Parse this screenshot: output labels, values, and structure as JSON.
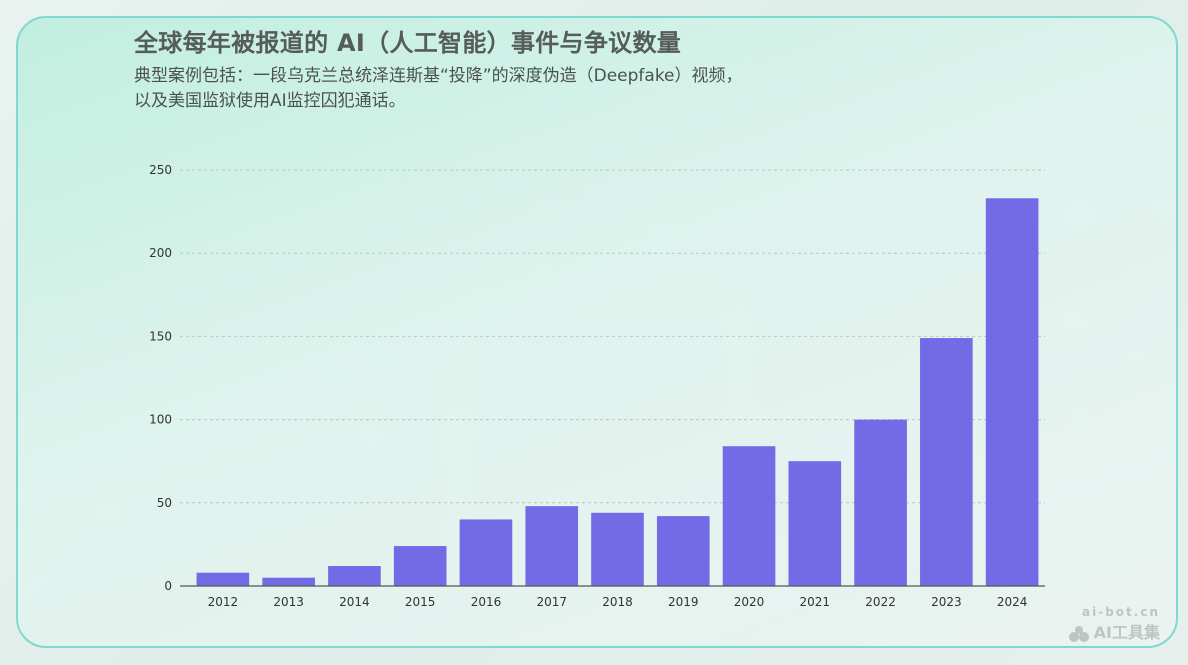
{
  "header": {
    "title": "全球每年被报道的 AI（人工智能）事件与争议数量",
    "subtitle_line1": "典型案例包括：一段乌克兰总统泽连斯基“投降”的深度伪造（Deepfake）视频，",
    "subtitle_line2": "以及美国监狱使用AI监控囚犯通话。"
  },
  "watermark": {
    "domain": "ai-bot.cn",
    "name": "AI工具集"
  },
  "colors": {
    "bar": "#736ae6",
    "axis": "#555555",
    "grid": "#b9c7c3",
    "card_border": "#7fd9cc"
  },
  "chart_data": {
    "type": "bar",
    "categories": [
      "2012",
      "2013",
      "2014",
      "2015",
      "2016",
      "2017",
      "2018",
      "2019",
      "2020",
      "2021",
      "2022",
      "2023",
      "2024"
    ],
    "values": [
      8,
      5,
      12,
      24,
      40,
      48,
      44,
      42,
      84,
      75,
      100,
      149,
      233
    ],
    "ylim": [
      0,
      250
    ],
    "yticks": [
      0,
      50,
      100,
      150,
      200,
      250
    ],
    "grid": true,
    "xlabel": "",
    "ylabel": ""
  }
}
